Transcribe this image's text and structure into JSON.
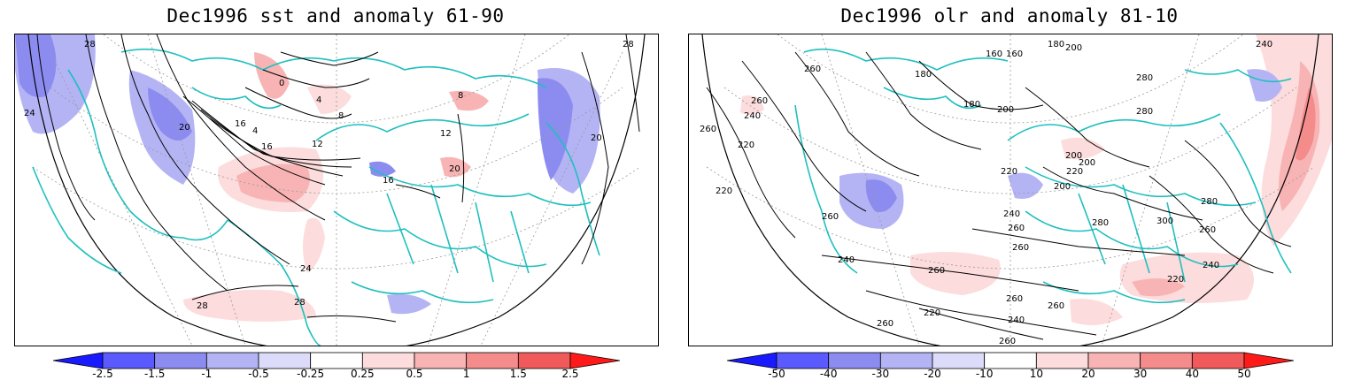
{
  "left_panel": {
    "title": "Dec1996 sst and anomaly 61-90",
    "colorbar": {
      "ticks": [
        "-2.5",
        "-1.5",
        "-1",
        "-0.5",
        "-0.25",
        "0.25",
        "0.5",
        "1",
        "1.5",
        "2.5"
      ],
      "colors": [
        "#1a1aff",
        "#5a5aff",
        "#8c8cf0",
        "#b4b4f5",
        "#dcdcfa",
        "#ffffff",
        "#fcdcdc",
        "#f8b4b4",
        "#f48c8c",
        "#f05a5a",
        "#ff1a1a"
      ]
    },
    "contour_labels": [
      "28",
      "24",
      "20",
      "16",
      "12",
      "8",
      "4",
      "4",
      "0",
      "20",
      "16",
      "12",
      "8",
      "24",
      "28",
      "28",
      "28",
      "20",
      "16"
    ]
  },
  "right_panel": {
    "title": "Dec1996 olr and anomaly 81-10",
    "colorbar": {
      "ticks": [
        "-50",
        "-40",
        "-30",
        "-20",
        "-10",
        "10",
        "20",
        "30",
        "40",
        "50"
      ],
      "colors": [
        "#1a1aff",
        "#5a5aff",
        "#8c8cf0",
        "#b4b4f5",
        "#dcdcfa",
        "#ffffff",
        "#fcdcdc",
        "#f8b4b4",
        "#f48c8c",
        "#f05a5a",
        "#ff1a1a"
      ]
    },
    "contour_labels": [
      "260",
      "260",
      "240",
      "220",
      "220",
      "260",
      "180",
      "160",
      "160",
      "180",
      "200",
      "200",
      "180",
      "240",
      "280",
      "280",
      "200",
      "200",
      "220",
      "220",
      "200",
      "240",
      "260",
      "260",
      "260",
      "300",
      "280",
      "260",
      "280",
      "240",
      "220",
      "240",
      "260",
      "220",
      "260",
      "240",
      "260",
      "260",
      "260"
    ]
  }
}
